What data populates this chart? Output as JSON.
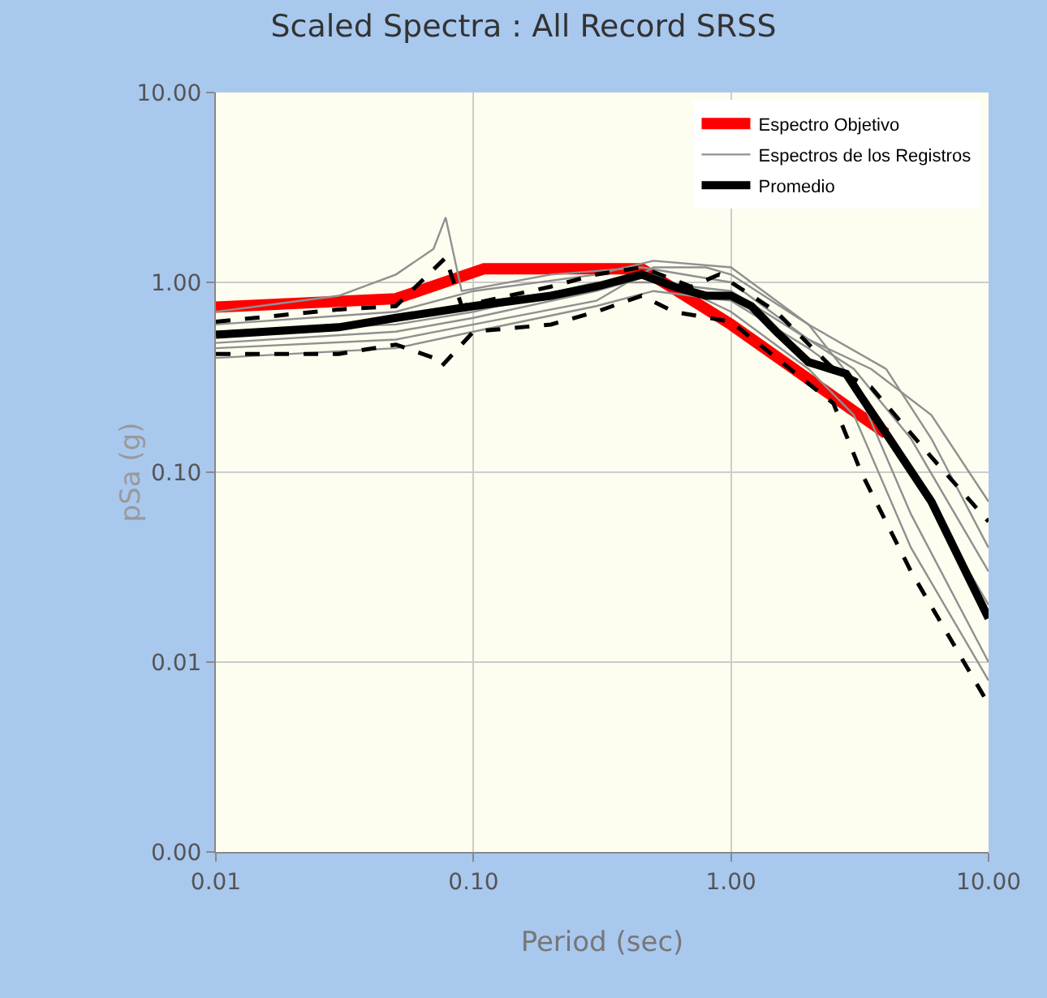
{
  "chart_data": {
    "type": "line",
    "title": "Scaled Spectra : All Record SRSS",
    "xlabel": "Period (sec)",
    "ylabel": "pSa (g)",
    "log": "xy",
    "grid": true,
    "legend": "top right",
    "marker": "none",
    "xlim": [
      0.01,
      10
    ],
    "xticks": [
      {
        "value": 0.01,
        "label": "0.01"
      },
      {
        "value": 0.1,
        "label": "0.10"
      },
      {
        "value": 1,
        "label": "1.00"
      },
      {
        "value": 10,
        "label": "10.00"
      }
    ],
    "ylim": [
      0.001,
      10
    ],
    "yticks": [
      {
        "value": 0.001,
        "label": "0.00"
      },
      {
        "value": 0.01,
        "label": "0.01"
      },
      {
        "value": 0.1,
        "label": "0.10"
      },
      {
        "value": 1,
        "label": "1.00"
      },
      {
        "value": 10,
        "label": "10.00"
      }
    ],
    "series": [
      {
        "name": "Espectro Objetivo",
        "color": "#ff0000",
        "line_style": "solid",
        "x": [
          0.01,
          0.05,
          0.11,
          0.45,
          1,
          3,
          4
        ],
        "values": [
          0.74,
          0.82,
          1.18,
          1.18,
          0.6,
          0.21,
          0.16
        ]
      },
      {
        "name": "Espectros de los Registros",
        "color": "#909090",
        "line_style": "solid",
        "x": [
          0.01,
          0.03,
          0.05,
          0.07,
          0.078,
          0.09,
          0.2,
          0.45,
          1,
          2,
          3.5,
          6,
          10
        ],
        "values": [
          0.7,
          0.85,
          1.1,
          1.5,
          2.2,
          0.9,
          1.1,
          1.2,
          1.0,
          0.5,
          0.35,
          0.2,
          0.07
        ]
      },
      {
        "color": "#909090",
        "line_style": "solid",
        "x": [
          0.01,
          0.05,
          0.1,
          0.3,
          0.5,
          0.8,
          1,
          2,
          3,
          5,
          10
        ],
        "values": [
          0.45,
          0.5,
          0.6,
          0.8,
          1.2,
          1.2,
          1.1,
          0.6,
          0.3,
          0.06,
          0.01
        ]
      },
      {
        "color": "#909090",
        "line_style": "solid",
        "x": [
          0.01,
          0.05,
          0.1,
          0.3,
          0.5,
          1,
          2,
          3,
          5,
          10
        ],
        "values": [
          0.55,
          0.6,
          0.7,
          1.0,
          1.0,
          0.9,
          0.5,
          0.35,
          0.15,
          0.03
        ]
      },
      {
        "color": "#909090",
        "line_style": "solid",
        "x": [
          0.01,
          0.05,
          0.1,
          0.3,
          0.5,
          1,
          2,
          3,
          5,
          10
        ],
        "values": [
          0.48,
          0.55,
          0.65,
          0.9,
          1.1,
          0.7,
          0.35,
          0.2,
          0.04,
          0.008
        ]
      },
      {
        "color": "#909090",
        "line_style": "solid",
        "x": [
          0.01,
          0.05,
          0.1,
          0.3,
          0.5,
          1,
          2,
          3,
          5,
          10
        ],
        "values": [
          0.4,
          0.45,
          0.55,
          0.75,
          0.9,
          0.8,
          0.45,
          0.3,
          0.1,
          0.02
        ]
      },
      {
        "color": "#909090",
        "line_style": "solid",
        "x": [
          0.01,
          0.05,
          0.1,
          0.3,
          0.5,
          1,
          2,
          4,
          6,
          10
        ],
        "values": [
          0.6,
          0.7,
          0.9,
          1.1,
          1.3,
          1.2,
          0.6,
          0.35,
          0.15,
          0.04
        ]
      },
      {
        "color": "#000000",
        "line_style": "dashed",
        "x": [
          0.01,
          0.03,
          0.05,
          0.078,
          0.09,
          0.2,
          0.3,
          0.45,
          0.7,
          0.9,
          1.5,
          2.5,
          3.5,
          6,
          10
        ],
        "values": [
          0.62,
          0.72,
          0.75,
          1.35,
          0.75,
          0.95,
          1.1,
          1.2,
          0.95,
          1.1,
          0.7,
          0.35,
          0.28,
          0.12,
          0.055
        ]
      },
      {
        "color": "#000000",
        "line_style": "dashed",
        "x": [
          0.01,
          0.03,
          0.05,
          0.07,
          0.075,
          0.1,
          0.2,
          0.3,
          0.45,
          0.6,
          1,
          1.5,
          2.5,
          3.2,
          5,
          10
        ],
        "values": [
          0.42,
          0.42,
          0.47,
          0.4,
          0.36,
          0.55,
          0.6,
          0.7,
          0.85,
          0.7,
          0.62,
          0.4,
          0.23,
          0.1,
          0.03,
          0.006
        ]
      },
      {
        "name": "Promedio",
        "color": "#000000",
        "line_style": "solid",
        "x": [
          0.01,
          0.03,
          0.05,
          0.1,
          0.2,
          0.3,
          0.45,
          0.6,
          0.8,
          1,
          1.2,
          1.5,
          2,
          2.8,
          3.2,
          4,
          6,
          10
        ],
        "values": [
          0.53,
          0.58,
          0.65,
          0.75,
          0.85,
          0.95,
          1.1,
          0.95,
          0.85,
          0.85,
          0.75,
          0.55,
          0.38,
          0.33,
          0.25,
          0.16,
          0.07,
          0.017
        ]
      }
    ]
  }
}
